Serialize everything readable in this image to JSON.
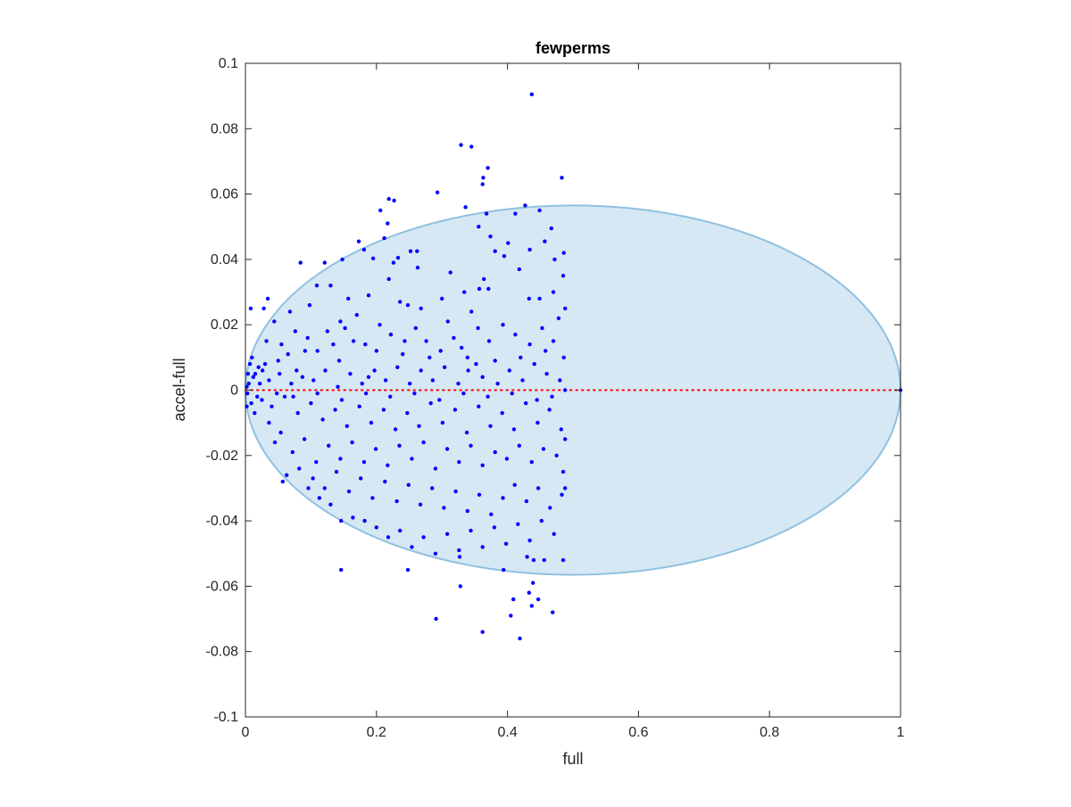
{
  "chart_data": {
    "type": "scatter",
    "title": "fewperms",
    "xlabel": "full",
    "ylabel": "accel-full",
    "xlim": [
      0,
      1
    ],
    "ylim": [
      -0.1,
      0.1
    ],
    "x_ticks": [
      "0",
      "0.2",
      "0.4",
      "0.6",
      "0.8",
      "1"
    ],
    "y_ticks": [
      "-0.1",
      "-0.08",
      "-0.06",
      "-0.04",
      "-0.02",
      "0",
      "0.02",
      "0.04",
      "0.06",
      "0.08",
      "0.1"
    ],
    "grid": false,
    "legend": "none",
    "colors": {
      "points": "#0000ff",
      "ellipse_fill": "#d6e8f4",
      "ellipse_edge": "#8fc1e0",
      "zero_line": "#ff0000"
    },
    "ellipse": {
      "center": [
        0.5,
        0
      ],
      "semi_axis_x": 0.5,
      "semi_axis_y": 0.0565
    },
    "reference_line": {
      "y": 0,
      "x_range": [
        0,
        1
      ],
      "style": "dotted"
    },
    "series": [
      {
        "marker": "dot",
        "points": [
          [
            0.437,
            0.0905
          ],
          [
            0.329,
            0.075
          ],
          [
            0.345,
            0.0745
          ],
          [
            0.37,
            0.068
          ],
          [
            0.363,
            0.065
          ],
          [
            0.362,
            0.063
          ],
          [
            0.483,
            0.065
          ],
          [
            0.293,
            0.0605
          ],
          [
            0.219,
            0.0585
          ],
          [
            0.227,
            0.058
          ],
          [
            0.206,
            0.055
          ],
          [
            0.217,
            0.051
          ],
          [
            0.212,
            0.0465
          ],
          [
            0.173,
            0.0455
          ],
          [
            0.181,
            0.043
          ],
          [
            0.195,
            0.0403
          ],
          [
            0.233,
            0.0405
          ],
          [
            0.226,
            0.039
          ],
          [
            0.148,
            0.04
          ],
          [
            0.121,
            0.039
          ],
          [
            0.084,
            0.039
          ],
          [
            0.252,
            0.0425
          ],
          [
            0.262,
            0.0425
          ],
          [
            0.263,
            0.0375
          ],
          [
            0.336,
            0.056
          ],
          [
            0.368,
            0.054
          ],
          [
            0.356,
            0.05
          ],
          [
            0.374,
            0.047
          ],
          [
            0.412,
            0.054
          ],
          [
            0.427,
            0.0565
          ],
          [
            0.449,
            0.055
          ],
          [
            0.467,
            0.0495
          ],
          [
            0.457,
            0.0455
          ],
          [
            0.434,
            0.043
          ],
          [
            0.472,
            0.04
          ],
          [
            0.486,
            0.042
          ],
          [
            0.418,
            0.037
          ],
          [
            0.395,
            0.041
          ],
          [
            0.381,
            0.0425
          ],
          [
            0.401,
            0.045
          ],
          [
            0.485,
            0.035
          ],
          [
            0.47,
            0.03
          ],
          [
            0.449,
            0.028
          ],
          [
            0.433,
            0.028
          ],
          [
            0.364,
            0.034
          ],
          [
            0.357,
            0.031
          ],
          [
            0.334,
            0.03
          ],
          [
            0.313,
            0.036
          ],
          [
            0.371,
            0.031
          ],
          [
            0.345,
            0.024
          ],
          [
            0.3,
            0.028
          ],
          [
            0.268,
            0.025
          ],
          [
            0.248,
            0.026
          ],
          [
            0.236,
            0.027
          ],
          [
            0.219,
            0.034
          ],
          [
            0.188,
            0.029
          ],
          [
            0.17,
            0.023
          ],
          [
            0.157,
            0.028
          ],
          [
            0.145,
            0.021
          ],
          [
            0.13,
            0.032
          ],
          [
            0.109,
            0.032
          ],
          [
            0.098,
            0.026
          ],
          [
            0.068,
            0.024
          ],
          [
            0.034,
            0.028
          ],
          [
            0.028,
            0.025
          ],
          [
            0.008,
            0.025
          ],
          [
            0.044,
            0.021
          ],
          [
            0.055,
            0.014
          ],
          [
            0.076,
            0.018
          ],
          [
            0.095,
            0.016
          ],
          [
            0.11,
            0.012
          ],
          [
            0.125,
            0.018
          ],
          [
            0.143,
            0.009
          ],
          [
            0.165,
            0.015
          ],
          [
            0.183,
            0.014
          ],
          [
            0.2,
            0.012
          ],
          [
            0.222,
            0.017
          ],
          [
            0.24,
            0.011
          ],
          [
            0.26,
            0.019
          ],
          [
            0.276,
            0.015
          ],
          [
            0.298,
            0.012
          ],
          [
            0.318,
            0.016
          ],
          [
            0.339,
            0.01
          ],
          [
            0.355,
            0.019
          ],
          [
            0.372,
            0.015
          ],
          [
            0.393,
            0.02
          ],
          [
            0.412,
            0.017
          ],
          [
            0.434,
            0.014
          ],
          [
            0.453,
            0.019
          ],
          [
            0.47,
            0.015
          ],
          [
            0.486,
            0.01
          ],
          [
            0.478,
            0.022
          ],
          [
            0.46,
            0.005
          ],
          [
            0.441,
            0.008
          ],
          [
            0.423,
            0.003
          ],
          [
            0.403,
            0.006
          ],
          [
            0.381,
            0.009
          ],
          [
            0.362,
            0.004
          ],
          [
            0.34,
            0.006
          ],
          [
            0.325,
            0.002
          ],
          [
            0.304,
            0.007
          ],
          [
            0.286,
            0.003
          ],
          [
            0.268,
            0.006
          ],
          [
            0.251,
            0.002
          ],
          [
            0.232,
            0.007
          ],
          [
            0.214,
            0.003
          ],
          [
            0.197,
            0.006
          ],
          [
            0.178,
            0.002
          ],
          [
            0.16,
            0.005
          ],
          [
            0.141,
            0.001
          ],
          [
            0.122,
            0.006
          ],
          [
            0.104,
            0.003
          ],
          [
            0.087,
            0.004
          ],
          [
            0.07,
            0.002
          ],
          [
            0.052,
            0.005
          ],
          [
            0.036,
            0.003
          ],
          [
            0.02,
            0.007
          ],
          [
            0.012,
            0.004
          ],
          [
            0.005,
            0.002
          ],
          [
            0.002,
            0.001
          ],
          [
            0.01,
            0.01
          ],
          [
            0.015,
            0.005
          ],
          [
            0.022,
            0.002
          ],
          [
            0.03,
            0.008
          ],
          [
            0.004,
            0.005
          ],
          [
            0.018,
            -0.002
          ],
          [
            0.009,
            -0.004
          ],
          [
            0.003,
            -0.001
          ],
          [
            0.025,
            -0.003
          ],
          [
            0.04,
            -0.005
          ],
          [
            0.06,
            -0.002
          ],
          [
            0.08,
            -0.007
          ],
          [
            0.1,
            -0.004
          ],
          [
            0.118,
            -0.009
          ],
          [
            0.137,
            -0.006
          ],
          [
            0.155,
            -0.011
          ],
          [
            0.174,
            -0.005
          ],
          [
            0.192,
            -0.01
          ],
          [
            0.211,
            -0.006
          ],
          [
            0.229,
            -0.012
          ],
          [
            0.247,
            -0.007
          ],
          [
            0.265,
            -0.011
          ],
          [
            0.283,
            -0.004
          ],
          [
            0.301,
            -0.01
          ],
          [
            0.32,
            -0.006
          ],
          [
            0.338,
            -0.013
          ],
          [
            0.356,
            -0.005
          ],
          [
            0.374,
            -0.011
          ],
          [
            0.392,
            -0.007
          ],
          [
            0.41,
            -0.012
          ],
          [
            0.428,
            -0.004
          ],
          [
            0.446,
            -0.01
          ],
          [
            0.464,
            -0.006
          ],
          [
            0.482,
            -0.012
          ],
          [
            0.475,
            -0.02
          ],
          [
            0.455,
            -0.018
          ],
          [
            0.437,
            -0.022
          ],
          [
            0.418,
            -0.017
          ],
          [
            0.399,
            -0.021
          ],
          [
            0.381,
            -0.019
          ],
          [
            0.362,
            -0.023
          ],
          [
            0.344,
            -0.017
          ],
          [
            0.326,
            -0.022
          ],
          [
            0.308,
            -0.018
          ],
          [
            0.29,
            -0.024
          ],
          [
            0.272,
            -0.016
          ],
          [
            0.254,
            -0.021
          ],
          [
            0.235,
            -0.017
          ],
          [
            0.217,
            -0.023
          ],
          [
            0.199,
            -0.018
          ],
          [
            0.181,
            -0.022
          ],
          [
            0.163,
            -0.016
          ],
          [
            0.145,
            -0.021
          ],
          [
            0.127,
            -0.017
          ],
          [
            0.108,
            -0.022
          ],
          [
            0.09,
            -0.015
          ],
          [
            0.072,
            -0.019
          ],
          [
            0.054,
            -0.013
          ],
          [
            0.036,
            -0.01
          ],
          [
            0.045,
            -0.016
          ],
          [
            0.063,
            -0.026
          ],
          [
            0.057,
            -0.028
          ],
          [
            0.082,
            -0.024
          ],
          [
            0.103,
            -0.027
          ],
          [
            0.121,
            -0.03
          ],
          [
            0.139,
            -0.025
          ],
          [
            0.158,
            -0.031
          ],
          [
            0.176,
            -0.027
          ],
          [
            0.194,
            -0.033
          ],
          [
            0.213,
            -0.028
          ],
          [
            0.231,
            -0.034
          ],
          [
            0.249,
            -0.029
          ],
          [
            0.267,
            -0.035
          ],
          [
            0.285,
            -0.03
          ],
          [
            0.303,
            -0.036
          ],
          [
            0.321,
            -0.031
          ],
          [
            0.339,
            -0.037
          ],
          [
            0.357,
            -0.032
          ],
          [
            0.375,
            -0.038
          ],
          [
            0.393,
            -0.033
          ],
          [
            0.411,
            -0.029
          ],
          [
            0.429,
            -0.034
          ],
          [
            0.447,
            -0.03
          ],
          [
            0.465,
            -0.036
          ],
          [
            0.483,
            -0.032
          ],
          [
            0.485,
            -0.025
          ],
          [
            0.471,
            -0.044
          ],
          [
            0.452,
            -0.04
          ],
          [
            0.434,
            -0.046
          ],
          [
            0.416,
            -0.041
          ],
          [
            0.398,
            -0.047
          ],
          [
            0.38,
            -0.042
          ],
          [
            0.362,
            -0.048
          ],
          [
            0.344,
            -0.043
          ],
          [
            0.326,
            -0.049
          ],
          [
            0.308,
            -0.044
          ],
          [
            0.29,
            -0.05
          ],
          [
            0.272,
            -0.045
          ],
          [
            0.254,
            -0.048
          ],
          [
            0.236,
            -0.043
          ],
          [
            0.218,
            -0.045
          ],
          [
            0.2,
            -0.042
          ],
          [
            0.182,
            -0.04
          ],
          [
            0.164,
            -0.039
          ],
          [
            0.146,
            -0.04
          ],
          [
            0.13,
            -0.035
          ],
          [
            0.113,
            -0.033
          ],
          [
            0.096,
            -0.03
          ],
          [
            0.44,
            -0.052
          ],
          [
            0.485,
            -0.052
          ],
          [
            0.456,
            -0.052
          ],
          [
            0.43,
            -0.051
          ],
          [
            0.394,
            -0.055
          ],
          [
            0.327,
            -0.051
          ],
          [
            0.248,
            -0.055
          ],
          [
            0.146,
            -0.055
          ],
          [
            0.439,
            -0.059
          ],
          [
            0.433,
            -0.062
          ],
          [
            0.447,
            -0.064
          ],
          [
            0.437,
            -0.066
          ],
          [
            0.409,
            -0.064
          ],
          [
            0.405,
            -0.069
          ],
          [
            0.469,
            -0.068
          ],
          [
            0.328,
            -0.06
          ],
          [
            0.291,
            -0.07
          ],
          [
            0.362,
            -0.074
          ],
          [
            0.419,
            -0.076
          ],
          [
            0.002,
            -0.005
          ],
          [
            0.014,
            -0.007
          ],
          [
            0.007,
            0.008
          ],
          [
            0.026,
            0.006
          ],
          [
            0.032,
            0.015
          ],
          [
            0.05,
            0.009
          ],
          [
            0.065,
            0.011
          ],
          [
            0.078,
            0.006
          ],
          [
            0.091,
            0.012
          ],
          [
            0.134,
            0.014
          ],
          [
            0.152,
            0.019
          ],
          [
            0.188,
            0.004
          ],
          [
            0.205,
            0.02
          ],
          [
            0.243,
            0.015
          ],
          [
            0.281,
            0.01
          ],
          [
            0.309,
            0.021
          ],
          [
            0.33,
            0.013
          ],
          [
            0.352,
            0.008
          ],
          [
            0.385,
            0.002
          ],
          [
            0.42,
            0.01
          ],
          [
            0.458,
            0.012
          ],
          [
            0.48,
            0.003
          ],
          [
            0.468,
            -0.002
          ],
          [
            0.445,
            -0.003
          ],
          [
            0.407,
            -0.001
          ],
          [
            0.37,
            -0.002
          ],
          [
            0.333,
            -0.001
          ],
          [
            0.296,
            -0.003
          ],
          [
            0.258,
            -0.001
          ],
          [
            0.221,
            -0.002
          ],
          [
            0.184,
            -0.001
          ],
          [
            0.147,
            -0.003
          ],
          [
            0.11,
            -0.001
          ],
          [
            0.073,
            -0.002
          ],
          [
            0.048,
            -0.001
          ],
          [
            0.488,
            0.025
          ],
          [
            0.488,
            0.0
          ],
          [
            0.488,
            -0.015
          ],
          [
            0.488,
            -0.03
          ],
          [
            1.0,
            0.0
          ]
        ]
      }
    ]
  }
}
